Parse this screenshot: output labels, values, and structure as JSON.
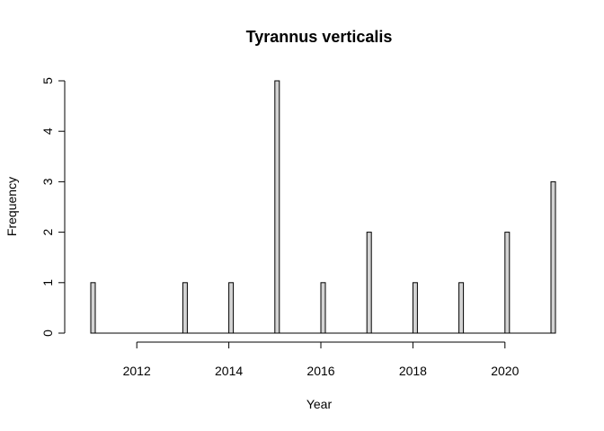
{
  "chart_data": {
    "type": "bar",
    "title": "Tyrannus verticalis",
    "xlabel": "Year",
    "ylabel": "Frequency",
    "x": [
      2011,
      2013,
      2014,
      2015,
      2016,
      2017,
      2018,
      2019,
      2020,
      2021
    ],
    "values": [
      1,
      1,
      1,
      5,
      1,
      2,
      1,
      1,
      2,
      3
    ],
    "x_ticks": [
      2012,
      2014,
      2016,
      2018,
      2020
    ],
    "y_ticks": [
      0,
      1,
      2,
      3,
      4,
      5
    ],
    "xlim": [
      2011,
      2021
    ],
    "ylim": [
      0,
      5
    ],
    "grid": false,
    "bar_color": "#d3d3d3"
  }
}
